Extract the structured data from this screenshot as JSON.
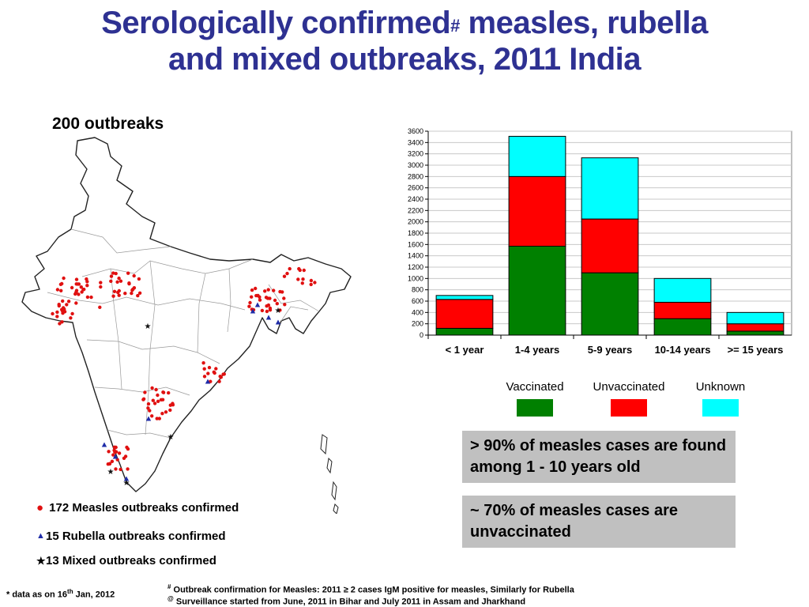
{
  "title": {
    "line1_a": "Serologically confirmed",
    "line1_sup": "#",
    "line1_b": " measles, rubella",
    "line2": "and mixed outbreaks, 2011 India"
  },
  "map": {
    "outbreak_count": "200 outbreaks",
    "legend": {
      "measles_marker": "●",
      "measles": "172 Measles outbreaks confirmed",
      "rubella_marker": "▲",
      "rubella": "15 Rubella outbreaks confirmed",
      "mixed_marker": "★",
      "mixed": "13 Mixed outbreaks confirmed"
    },
    "colors": {
      "measles": "#e01010",
      "rubella": "#1f2ca8",
      "mixed": "#111111"
    }
  },
  "chart_data": {
    "type": "bar",
    "stacked": true,
    "categories": [
      "< 1 year",
      "1-4 years",
      "5-9 years",
      "10-14 years",
      ">= 15 years"
    ],
    "series": [
      {
        "name": "Vaccinated",
        "color": "#008000",
        "values": [
          120,
          1570,
          1100,
          290,
          70
        ]
      },
      {
        "name": "Unvaccinated",
        "color": "#ff0000",
        "values": [
          510,
          1230,
          950,
          290,
          130
        ]
      },
      {
        "name": "Unknown",
        "color": "#00ffff",
        "values": [
          70,
          710,
          1080,
          420,
          200
        ]
      }
    ],
    "ylim": [
      0,
      3600
    ],
    "yticks": [
      0,
      200,
      400,
      600,
      800,
      1000,
      1200,
      1400,
      1600,
      1800,
      2000,
      2200,
      2400,
      2600,
      2800,
      3000,
      3200,
      3400,
      3600
    ],
    "grid": true,
    "legend_position": "bottom"
  },
  "boxes": {
    "box1": "> 90% of measles cases are found among 1 - 10 years old",
    "box2": "~ 70% of measles cases are unvaccinated"
  },
  "footnotes": {
    "data_date_a": "* data as on 16",
    "data_date_sup": "th",
    "data_date_b": " Jan, 2012",
    "note1_sup": "#",
    "note1": " Outbreak confirmation for Measles: 2011  ≥ 2 cases IgM positive for measles, Similarly for Rubella",
    "note2_sup": "@",
    "note2": " Surveillance started from June, 2011 in Bihar and July 2011 in Assam and Jharkhand"
  }
}
